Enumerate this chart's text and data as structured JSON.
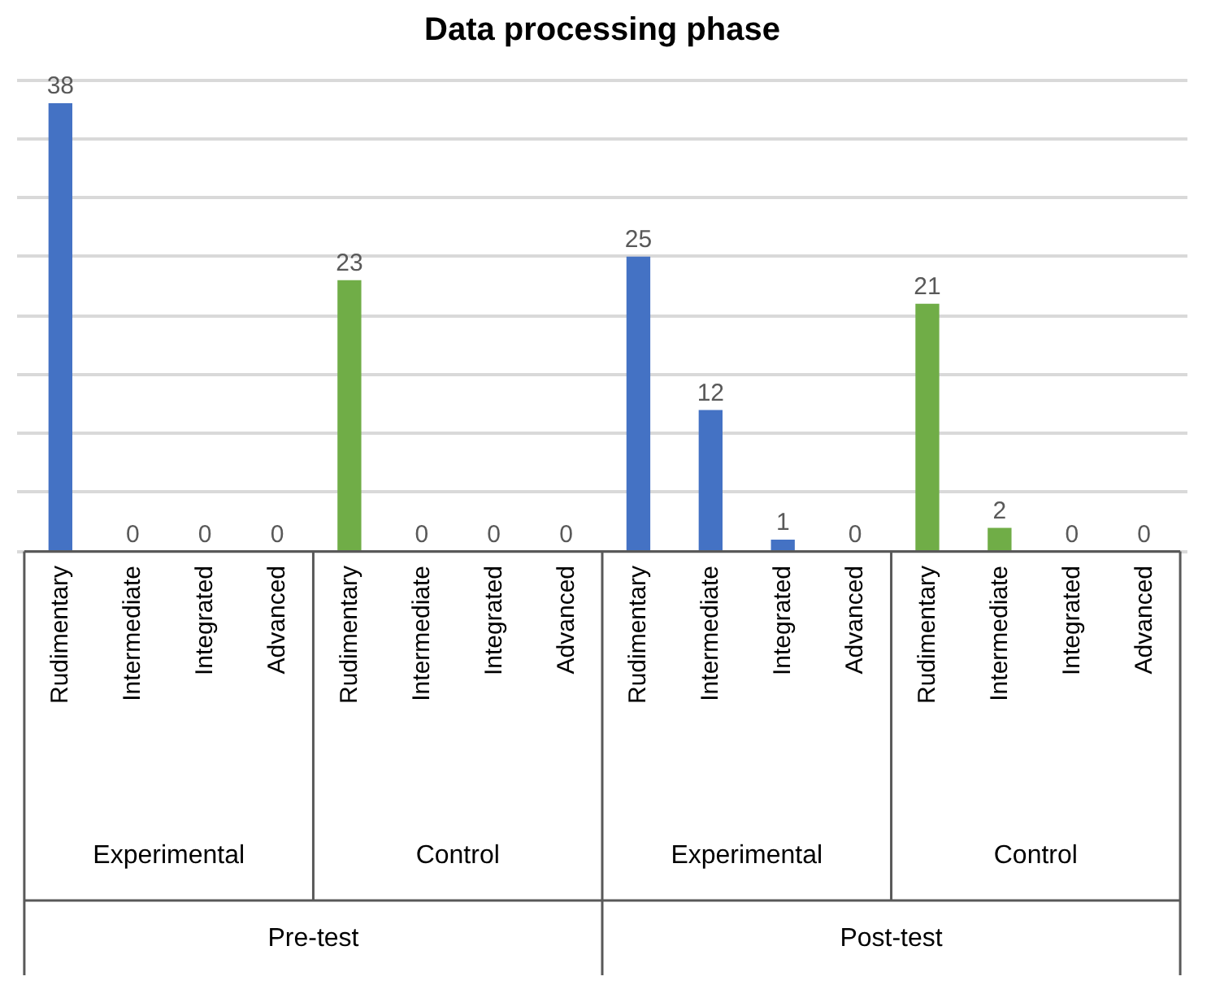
{
  "chart_data": {
    "type": "bar",
    "title": "Data processing phase",
    "categories": [
      "Rudimentary",
      "Intermediate",
      "Integrated",
      "Advanced",
      "Rudimentary",
      "Intermediate",
      "Integrated",
      "Advanced",
      "Rudimentary",
      "Intermediate",
      "Integrated",
      "Advanced",
      "Rudimentary",
      "Intermediate",
      "Integrated",
      "Advanced"
    ],
    "values": [
      38,
      0,
      0,
      0,
      23,
      0,
      0,
      0,
      25,
      12,
      1,
      0,
      21,
      2,
      0,
      0
    ],
    "colors": [
      "#4472c4",
      "#4472c4",
      "#4472c4",
      "#4472c4",
      "#70ad47",
      "#70ad47",
      "#70ad47",
      "#70ad47",
      "#4472c4",
      "#4472c4",
      "#4472c4",
      "#4472c4",
      "#70ad47",
      "#70ad47",
      "#70ad47",
      "#70ad47"
    ],
    "annotations": [
      "Experimental",
      "Control",
      "Experimental",
      "Control",
      "Pre-test",
      "Post-test"
    ],
    "ylim": [
      0,
      40
    ],
    "yticks": [
      {
        "value": 0,
        "label": null
      },
      {
        "value": 5,
        "label": null
      },
      {
        "value": 10,
        "label": null
      },
      {
        "value": 15,
        "label": null
      },
      {
        "value": 20,
        "label": null
      },
      {
        "value": 25,
        "label": null
      },
      {
        "value": 30,
        "label": null
      },
      {
        "value": 35,
        "label": null
      },
      {
        "value": 40,
        "label": null
      }
    ],
    "grid": "y",
    "data_labels": true,
    "tick_labels": false
  }
}
